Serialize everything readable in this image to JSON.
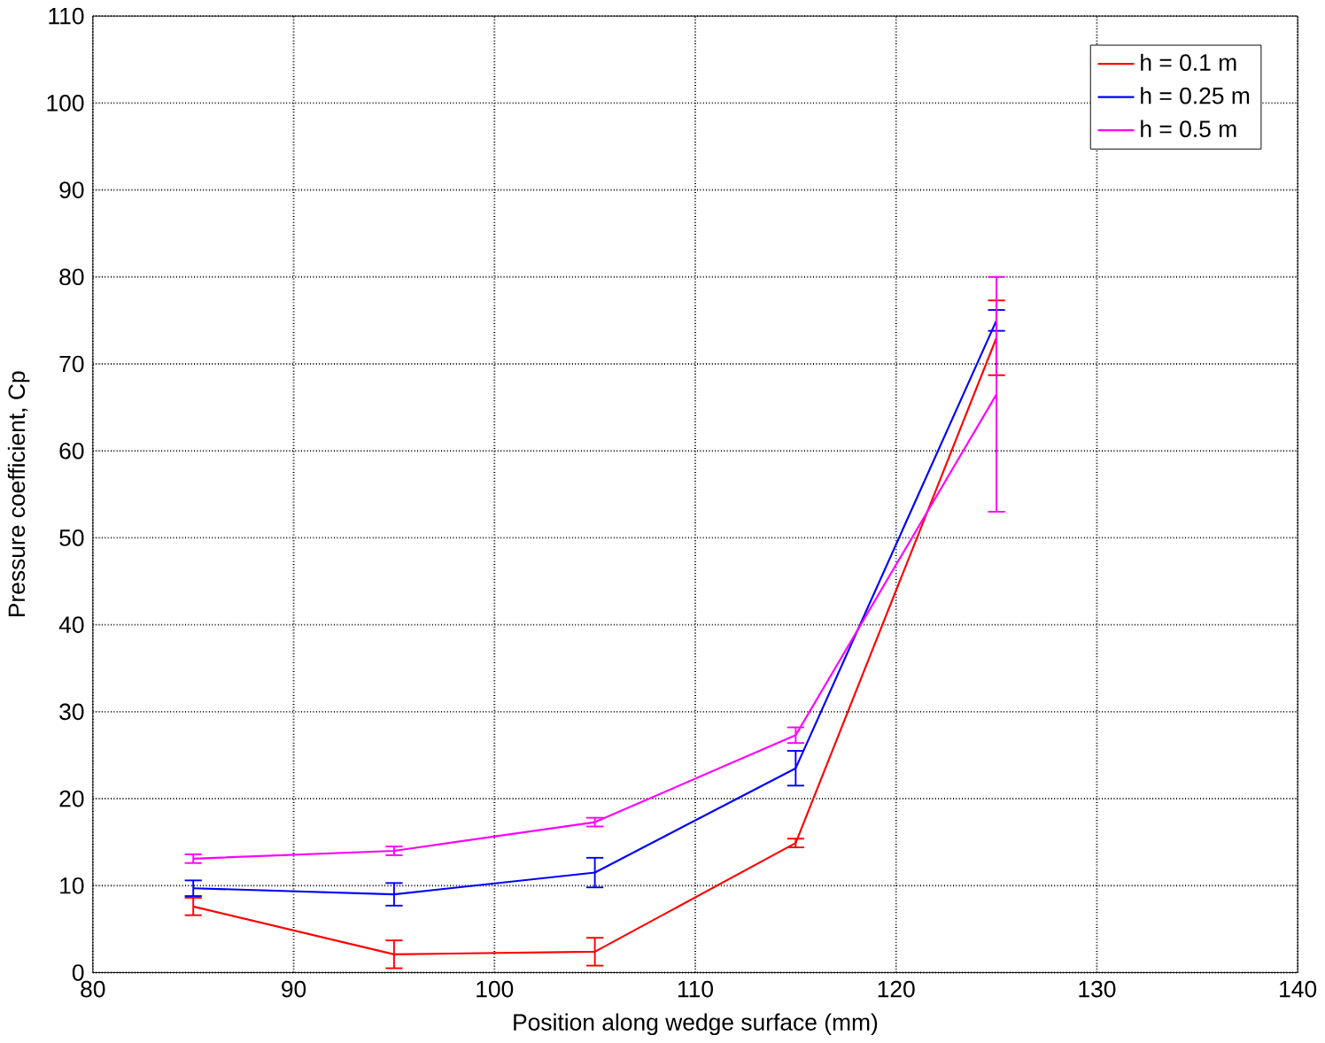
{
  "chart_data": {
    "type": "line",
    "xlabel": "Position along wedge surface (mm)",
    "ylabel": "Pressure coefficient, Cp",
    "x": [
      85,
      95,
      105,
      115,
      125
    ],
    "series": [
      {
        "name": "h = 0.1 m",
        "color": "#ff0000",
        "values": [
          7.6,
          2.1,
          2.4,
          14.9,
          73
        ],
        "errors": [
          1,
          1.6,
          1.6,
          0.5,
          4.3
        ]
      },
      {
        "name": "h = 0.25 m",
        "color": "#0000ff",
        "values": [
          9.7,
          9,
          11.5,
          23.5,
          75
        ],
        "errors": [
          0.9,
          1.3,
          1.7,
          2,
          1.2
        ]
      },
      {
        "name": "h = 0.5 m",
        "color": "#ff00ff",
        "values": [
          13.1,
          14,
          17.3,
          27.3,
          66.5
        ],
        "errors": [
          0.5,
          0.5,
          0.5,
          0.9,
          13.5
        ]
      }
    ],
    "xlim": [
      80,
      140
    ],
    "xticks": [
      80,
      90,
      100,
      110,
      120,
      130,
      140
    ],
    "ylim": [
      0,
      110
    ],
    "yticks": [
      0,
      10,
      20,
      30,
      40,
      50,
      60,
      70,
      80,
      90,
      100,
      110
    ],
    "grid": true,
    "legend": "top right",
    "marker": "none",
    "line_style": "solid"
  }
}
